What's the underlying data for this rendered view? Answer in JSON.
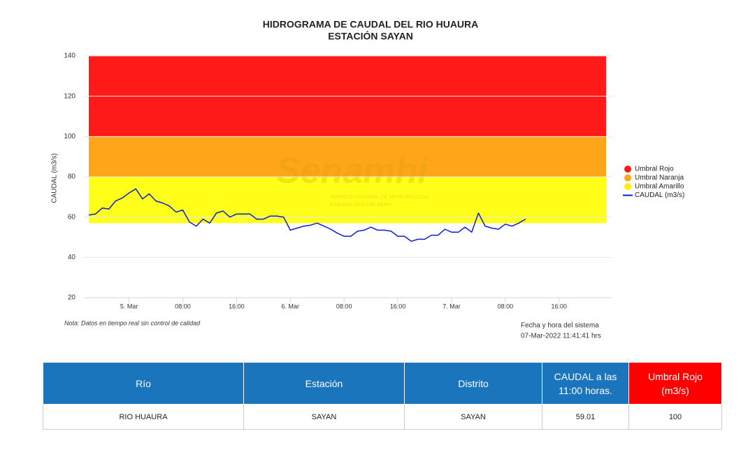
{
  "chart_data": {
    "type": "line",
    "title": "HIDROGRAMA DE CAUDAL DEL RIO HUAURA",
    "subtitle": "ESTACIÓN SAYAN",
    "y_label": "CAUDAL (m3/s)",
    "watermark": "Senamhi",
    "watermark_sub": [
      "SERVICIO NACIONAL DE METEOROLOGÍA",
      "E HIDROLOGÍA DEL PERÚ"
    ],
    "categories": [
      null,
      null,
      null,
      null,
      null,
      null,
      "5. Mar",
      null,
      null,
      null,
      null,
      null,
      null,
      null,
      "08:00",
      null,
      null,
      null,
      null,
      null,
      null,
      null,
      "16:00",
      null,
      null,
      null,
      null,
      null,
      null,
      null,
      "6. Mar",
      null,
      null,
      null,
      null,
      null,
      null,
      null,
      "08:00",
      null,
      null,
      null,
      null,
      null,
      null,
      null,
      "16:00",
      null,
      null,
      null,
      null,
      null,
      null,
      null,
      "7. Mar",
      null,
      null,
      null,
      null,
      null,
      null,
      null,
      "08:00",
      null,
      null,
      null,
      null,
      null,
      null,
      null,
      "16:00",
      null,
      null,
      null,
      null,
      null,
      null,
      null
    ],
    "series": [
      {
        "name": "CAUDAL (m3/s)",
        "color": "#0a1fd6",
        "values": [
          61,
          61.5,
          64.5,
          64,
          68,
          69.5,
          72,
          74,
          69,
          71.5,
          68,
          67,
          65.5,
          62.5,
          63.5,
          57.5,
          55.5,
          59,
          57,
          62,
          63,
          60,
          61.5,
          61.5,
          61.5,
          59,
          59,
          60.5,
          60.5,
          60,
          53.5,
          54.5,
          55.5,
          56,
          57,
          55.5,
          54,
          52,
          50.5,
          50.5,
          53,
          53.5,
          55,
          53.5,
          53.5,
          53,
          50.5,
          50.5,
          48,
          49,
          49,
          51,
          51,
          54,
          52.5,
          52.5,
          55,
          52.5,
          62,
          55.5,
          54.5,
          54,
          56.5,
          55.5,
          57,
          59,
          null,
          null,
          null,
          null,
          null,
          null,
          null,
          null,
          null,
          null,
          null,
          null
        ]
      }
    ],
    "bands": [
      {
        "name": "Umbral Rojo",
        "color": "#ff1a1a",
        "from": 100,
        "to": 140
      },
      {
        "name": "Umbral Naranja",
        "color": "#ffa51a",
        "from": 80,
        "to": 100
      },
      {
        "name": "Umbral Amarillo",
        "color": "#ffff1a",
        "from": 57,
        "to": 80
      }
    ],
    "ylim": [
      20,
      140
    ],
    "yticks": [
      20,
      40,
      60,
      80,
      100,
      120,
      140
    ],
    "grid": true,
    "legend": "right"
  },
  "note": "Nota: Datos en tiempo real sin control de calidad",
  "system_time": [
    "Fecha y hora del sistema",
    "07-Mar-2022 11:41:41 hrs"
  ],
  "table": {
    "header": [
      "Río",
      "Estación",
      "Distrito",
      "CAUDAL a las 11:00 horas.",
      "Umbral Rojo (m3/s)"
    ],
    "rows": [
      [
        "RIO HUAURA",
        "SAYAN",
        "SAYAN",
        "59.01",
        "100"
      ]
    ]
  }
}
